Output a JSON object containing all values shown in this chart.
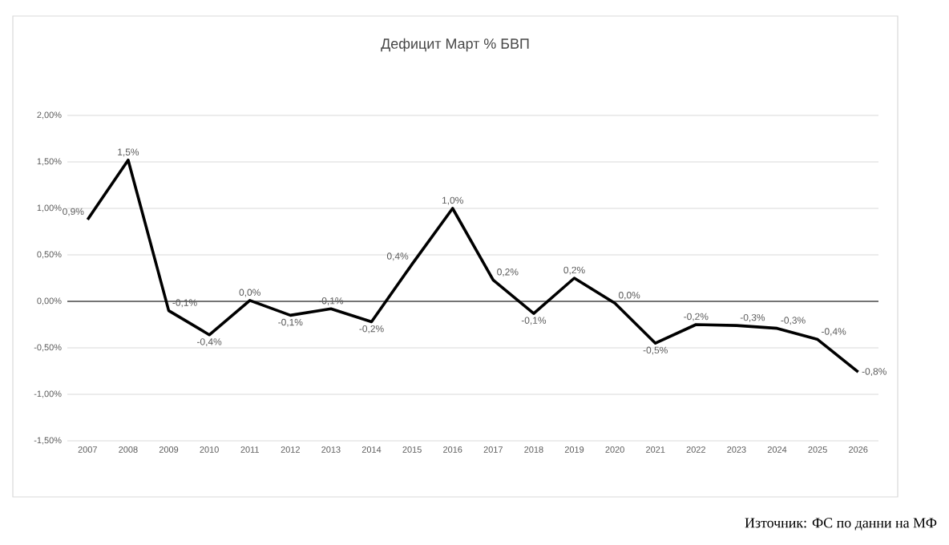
{
  "chart_data": {
    "type": "line",
    "title": "Дефицит Март % БВП",
    "categories": [
      "2007",
      "2008",
      "2009",
      "2010",
      "2011",
      "2012",
      "2013",
      "2014",
      "2015",
      "2016",
      "2017",
      "2018",
      "2019",
      "2020",
      "2021",
      "2022",
      "2023",
      "2024",
      "2025",
      "2026"
    ],
    "series": [
      {
        "color": "#000000",
        "values": [
          0.88,
          1.52,
          -0.1,
          -0.36,
          0.01,
          -0.15,
          -0.08,
          -0.22,
          0.4,
          1.0,
          0.23,
          -0.13,
          0.25,
          -0.02,
          -0.45,
          -0.25,
          -0.26,
          -0.29,
          -0.41,
          -0.76
        ],
        "value_labels": [
          "0,9%",
          "1,5%",
          "-0,1%",
          "-0,4%",
          "0,0%",
          "-0,1%",
          "-0,1%",
          "-0,2%",
          "0,4%",
          "1,0%",
          "0,2%",
          "-0,1%",
          "0,2%",
          "0,0%",
          "-0,5%",
          "-0,2%",
          "-0,3%",
          "-0,3%",
          "-0,4%",
          "-0,8%"
        ]
      }
    ],
    "ylim": [
      -1.5,
      2.0
    ],
    "yticks": [
      {
        "value": -1.5,
        "label": "-1,50%"
      },
      {
        "value": -1.0,
        "label": "-1,00%"
      },
      {
        "value": -0.5,
        "label": "-0,50%"
      },
      {
        "value": 0,
        "label": "0,00%"
      },
      {
        "value": 0.5,
        "label": "0,50%"
      },
      {
        "value": 1.0,
        "label": "1,00%"
      },
      {
        "value": 1.5,
        "label": "1,50%"
      },
      {
        "value": 2.0,
        "label": "2,00%"
      }
    ],
    "grid": "y",
    "marker": "none",
    "line_style": "solid",
    "annotations": [
      "Източник: ФС по данни на МФ"
    ]
  }
}
